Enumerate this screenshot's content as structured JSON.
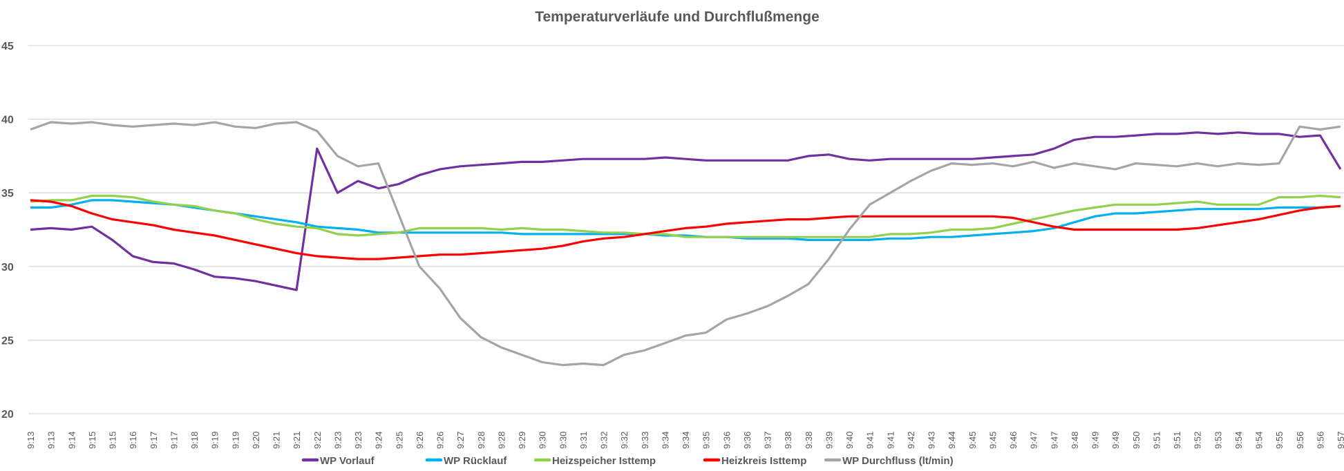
{
  "chart_data": {
    "type": "line",
    "title": "Temperaturverläufe und Durchflußmenge",
    "xlabel": "",
    "ylabel": "",
    "ylim": [
      20,
      45
    ],
    "yticks": [
      20,
      25,
      30,
      35,
      40,
      45
    ],
    "grid": true,
    "legend_placement": "bottom",
    "categories": [
      "9:13",
      "9:13",
      "9:14",
      "9:15",
      "9:15",
      "9:16",
      "9:17",
      "9:17",
      "9:18",
      "9:19",
      "9:19",
      "9:20",
      "9:21",
      "9:21",
      "9:22",
      "9:23",
      "9:23",
      "9:24",
      "9:25",
      "9:26",
      "9:26",
      "9:27",
      "9:28",
      "9:28",
      "9:29",
      "9:30",
      "9:30",
      "9:31",
      "9:32",
      "9:32",
      "9:33",
      "9:34",
      "9:34",
      "9:35",
      "9:36",
      "9:36",
      "9:37",
      "9:38",
      "9:38",
      "9:39",
      "9:40",
      "9:41",
      "9:41",
      "9:42",
      "9:43",
      "9:44",
      "9:45",
      "9:45",
      "9:46",
      "9:47",
      "9:47",
      "9:48",
      "9:49",
      "9:49",
      "9:50",
      "9:51",
      "9:51",
      "9:52",
      "9:53",
      "9:54",
      "9:54",
      "9:55",
      "9:56",
      "9:56",
      "9:57"
    ],
    "series": [
      {
        "name": "WP Vorlauf",
        "color": "#7030A0",
        "values": [
          32.5,
          32.6,
          32.5,
          32.7,
          31.8,
          30.7,
          30.3,
          30.2,
          29.8,
          29.3,
          29.2,
          29.0,
          28.7,
          28.4,
          38.0,
          35.0,
          35.8,
          35.3,
          35.6,
          36.2,
          36.6,
          36.8,
          36.9,
          37.0,
          37.1,
          37.1,
          37.2,
          37.3,
          37.3,
          37.3,
          37.3,
          37.4,
          37.3,
          37.2,
          37.2,
          37.2,
          37.2,
          37.2,
          37.5,
          37.6,
          37.3,
          37.2,
          37.3,
          37.3,
          37.3,
          37.3,
          37.3,
          37.4,
          37.5,
          37.6,
          38.0,
          38.6,
          38.8,
          38.8,
          38.9,
          39.0,
          39.0,
          39.1,
          39.0,
          39.1,
          39.0,
          39.0,
          38.8,
          38.9,
          36.6
        ]
      },
      {
        "name": "WP Rücklauf",
        "color": "#00B0F0",
        "values": [
          34.0,
          34.0,
          34.2,
          34.5,
          34.5,
          34.4,
          34.3,
          34.2,
          34.0,
          33.8,
          33.6,
          33.4,
          33.2,
          33.0,
          32.7,
          32.6,
          32.5,
          32.3,
          32.3,
          32.3,
          32.3,
          32.3,
          32.3,
          32.3,
          32.2,
          32.2,
          32.2,
          32.2,
          32.2,
          32.2,
          32.2,
          32.1,
          32.1,
          32.0,
          32.0,
          31.9,
          31.9,
          31.9,
          31.8,
          31.8,
          31.8,
          31.8,
          31.9,
          31.9,
          32.0,
          32.0,
          32.1,
          32.2,
          32.3,
          32.4,
          32.6,
          33.0,
          33.4,
          33.6,
          33.6,
          33.7,
          33.8,
          33.9,
          33.9,
          33.9,
          33.9,
          34.0,
          34.0,
          34.0,
          34.1
        ]
      },
      {
        "name": "Heizspeicher Isttemp",
        "color": "#92D050",
        "values": [
          34.4,
          34.5,
          34.5,
          34.8,
          34.8,
          34.7,
          34.4,
          34.2,
          34.1,
          33.8,
          33.6,
          33.2,
          32.9,
          32.7,
          32.6,
          32.2,
          32.1,
          32.2,
          32.3,
          32.6,
          32.6,
          32.6,
          32.6,
          32.5,
          32.6,
          32.5,
          32.5,
          32.4,
          32.3,
          32.3,
          32.2,
          32.2,
          32.0,
          32.0,
          32.0,
          32.0,
          32.0,
          32.0,
          32.0,
          32.0,
          32.0,
          32.0,
          32.2,
          32.2,
          32.3,
          32.5,
          32.5,
          32.6,
          32.9,
          33.2,
          33.5,
          33.8,
          34.0,
          34.2,
          34.2,
          34.2,
          34.3,
          34.4,
          34.2,
          34.2,
          34.2,
          34.7,
          34.7,
          34.8,
          34.7
        ]
      },
      {
        "name": "Heizkreis Isttemp",
        "color": "#FF0000",
        "values": [
          34.5,
          34.4,
          34.1,
          33.6,
          33.2,
          33.0,
          32.8,
          32.5,
          32.3,
          32.1,
          31.8,
          31.5,
          31.2,
          30.9,
          30.7,
          30.6,
          30.5,
          30.5,
          30.6,
          30.7,
          30.8,
          30.8,
          30.9,
          31.0,
          31.1,
          31.2,
          31.4,
          31.7,
          31.9,
          32.0,
          32.2,
          32.4,
          32.6,
          32.7,
          32.9,
          33.0,
          33.1,
          33.2,
          33.2,
          33.3,
          33.4,
          33.4,
          33.4,
          33.4,
          33.4,
          33.4,
          33.4,
          33.4,
          33.3,
          33.0,
          32.7,
          32.5,
          32.5,
          32.5,
          32.5,
          32.5,
          32.5,
          32.6,
          32.8,
          33.0,
          33.2,
          33.5,
          33.8,
          34.0,
          34.1
        ]
      },
      {
        "name": "WP Durchfluss (lt/min)",
        "color": "#A5A5A5",
        "values": [
          39.3,
          39.8,
          39.7,
          39.8,
          39.6,
          39.5,
          39.6,
          39.7,
          39.6,
          39.8,
          39.5,
          39.4,
          39.7,
          39.8,
          39.2,
          37.5,
          36.8,
          37.0,
          33.5,
          30.0,
          28.5,
          26.5,
          25.2,
          24.5,
          24.0,
          23.5,
          23.3,
          23.4,
          23.3,
          24.0,
          24.3,
          24.8,
          25.3,
          25.5,
          26.4,
          26.8,
          27.3,
          28.0,
          28.8,
          30.5,
          32.5,
          34.2,
          35.0,
          35.8,
          36.5,
          37.0,
          36.9,
          37.0,
          36.8,
          37.1,
          36.7,
          37.0,
          36.8,
          36.6,
          37.0,
          36.9,
          36.8,
          37.0,
          36.8,
          37.0,
          36.9,
          37.0,
          39.5,
          39.3,
          39.5
        ]
      }
    ]
  }
}
